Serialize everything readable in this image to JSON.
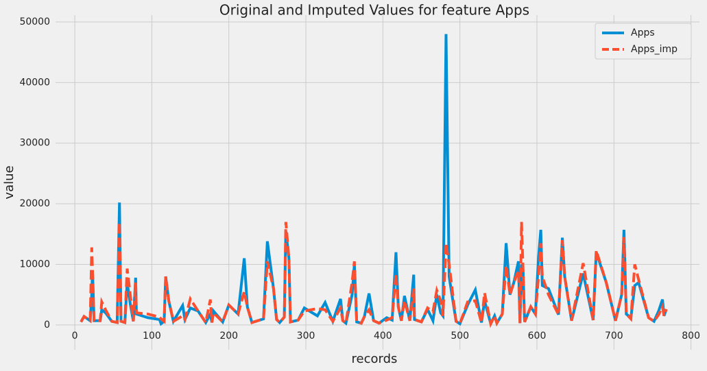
{
  "chart_data": {
    "type": "line",
    "title": "Original and Imputed Values for feature Apps",
    "x_label": "records",
    "y_label": "value",
    "x": [
      8,
      12,
      20,
      22,
      23,
      25,
      33,
      35,
      40,
      48,
      55,
      58,
      60,
      65,
      68,
      72,
      76,
      79,
      80,
      95,
      110,
      112,
      116,
      118,
      122,
      128,
      140,
      143,
      150,
      160,
      170,
      176,
      178,
      180,
      192,
      200,
      212,
      220,
      224,
      230,
      245,
      250,
      258,
      262,
      266,
      272,
      274,
      278,
      280,
      290,
      298,
      315,
      325,
      335,
      345,
      348,
      352,
      360,
      363,
      366,
      372,
      376,
      382,
      388,
      395,
      405,
      412,
      417,
      420,
      424,
      428,
      435,
      440,
      441,
      450,
      458,
      465,
      470,
      475,
      478,
      482,
      486,
      495,
      500,
      510,
      520,
      528,
      532,
      540,
      545,
      548,
      555,
      560,
      565,
      570,
      576,
      578,
      580,
      582,
      584,
      592,
      598,
      602,
      605,
      607,
      615,
      628,
      633,
      636,
      645,
      660,
      673,
      677,
      690,
      702,
      710,
      713,
      716,
      722,
      727,
      732,
      745,
      752,
      758,
      763,
      765,
      768
    ],
    "series": [
      {
        "name": "Apps",
        "color": "#008fd5",
        "linestyle": "solid",
        "values": [
          500,
          1400,
          700,
          5000,
          9000,
          700,
          700,
          2500,
          2000,
          600,
          400,
          20200,
          600,
          400,
          7000,
          3500,
          600,
          7800,
          1800,
          1200,
          900,
          200,
          600,
          8000,
          4000,
          600,
          3200,
          900,
          2800,
          2300,
          400,
          1800,
          400,
          2300,
          500,
          3300,
          1800,
          11000,
          3000,
          400,
          1000,
          13800,
          6000,
          900,
          400,
          1300,
          15500,
          11000,
          500,
          800,
          2800,
          1500,
          3700,
          600,
          4300,
          700,
          300,
          5000,
          10000,
          500,
          300,
          1400,
          5200,
          700,
          300,
          1200,
          800,
          12000,
          3000,
          700,
          4800,
          700,
          8300,
          900,
          500,
          2600,
          700,
          5000,
          2000,
          1500,
          48000,
          8000,
          600,
          200,
          3300,
          5800,
          400,
          4000,
          200,
          1500,
          300,
          1800,
          13500,
          5000,
          7000,
          10500,
          300,
          10000,
          9000,
          500,
          3000,
          1800,
          11000,
          15700,
          6500,
          6000,
          1700,
          14400,
          8000,
          700,
          8500,
          800,
          12000,
          7000,
          700,
          5000,
          15700,
          1800,
          1200,
          6500,
          7000,
          1200,
          600,
          2300,
          4200,
          1500,
          2600
        ]
      },
      {
        "name": "Apps_imp",
        "color": "#fc4f30",
        "linestyle": "dashed",
        "values": [
          500,
          1400,
          700,
          12800,
          9000,
          700,
          700,
          3800,
          2500,
          600,
          400,
          17000,
          600,
          400,
          9300,
          5000,
          600,
          7000,
          2000,
          1800,
          1300,
          1000,
          600,
          8000,
          4000,
          600,
          1500,
          900,
          4300,
          2300,
          400,
          4200,
          400,
          2000,
          500,
          3300,
          1800,
          5500,
          3000,
          400,
          1000,
          10500,
          6000,
          900,
          400,
          1300,
          17000,
          11000,
          500,
          800,
          2300,
          2700,
          2500,
          600,
          2800,
          700,
          300,
          7000,
          10500,
          500,
          300,
          1400,
          2500,
          700,
          300,
          800,
          1200,
          8500,
          3000,
          700,
          4000,
          700,
          6000,
          900,
          500,
          2800,
          2200,
          5700,
          4000,
          1500,
          13500,
          10000,
          600,
          200,
          3800,
          4000,
          400,
          5300,
          200,
          1500,
          300,
          1800,
          9800,
          5000,
          7000,
          9000,
          300,
          17000,
          9000,
          500,
          3000,
          1800,
          8000,
          13500,
          8000,
          5000,
          1700,
          14000,
          8000,
          700,
          10200,
          800,
          12300,
          7000,
          700,
          5000,
          14500,
          1800,
          1000,
          10000,
          7500,
          1200,
          600,
          1700,
          3000,
          1500,
          2600
        ]
      }
    ],
    "xlim": [
      -25,
      811
    ],
    "ylim": [
      -4090,
      51130
    ],
    "xticks": [
      0,
      100,
      200,
      300,
      400,
      500,
      600,
      700,
      800
    ],
    "yticks": [
      0,
      10000,
      20000,
      30000,
      40000,
      50000
    ],
    "grid": true,
    "legend": "upper right"
  }
}
